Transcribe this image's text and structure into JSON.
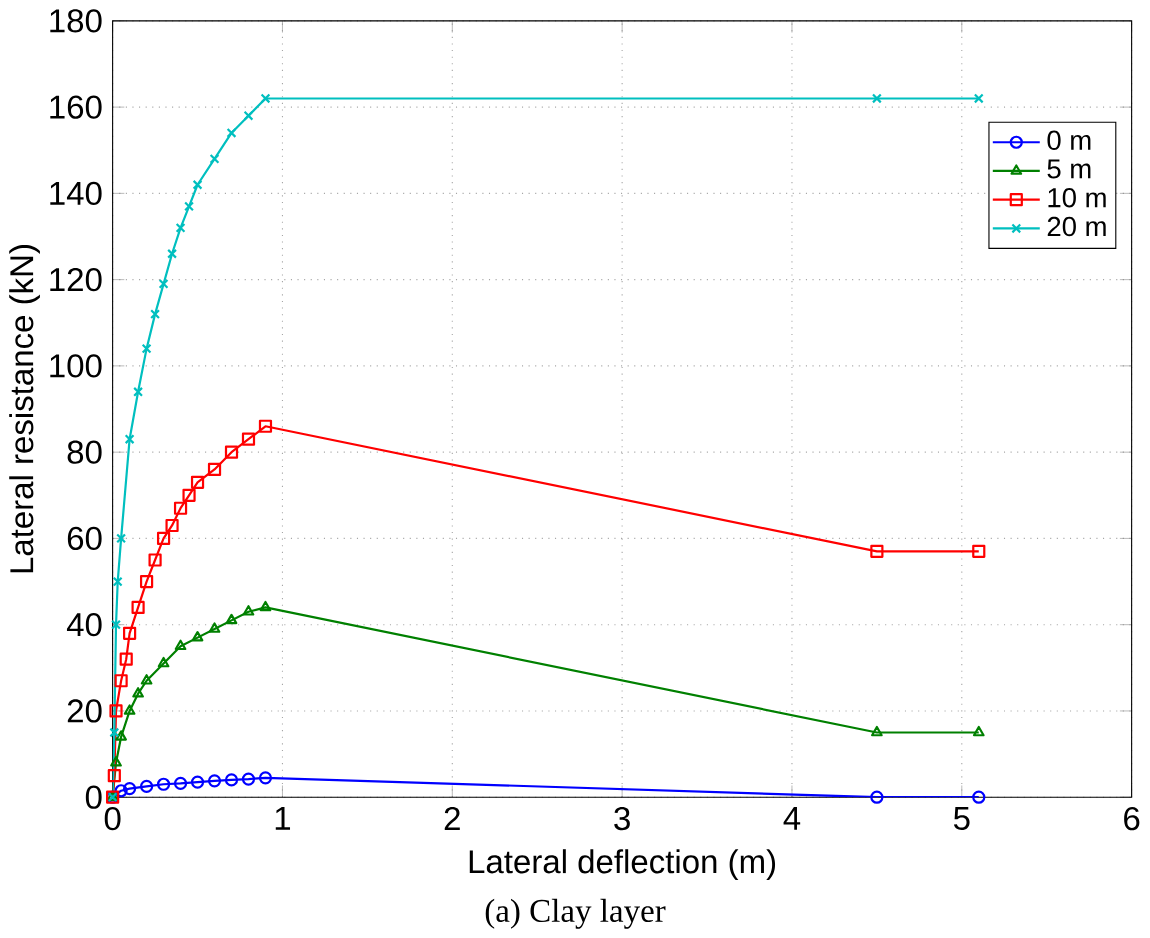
{
  "chart_data": {
    "type": "line",
    "xlabel": "Lateral deflection (m)",
    "ylabel": "Lateral resistance (kN)",
    "xlim": [
      0,
      6
    ],
    "ylim": [
      0,
      180
    ],
    "xticks": [
      0,
      1,
      2,
      3,
      4,
      5,
      6
    ],
    "yticks": [
      0,
      20,
      40,
      60,
      80,
      100,
      120,
      140,
      160,
      180
    ],
    "grid": true,
    "legend": "top right",
    "annotations": [
      "(a) Clay layer"
    ],
    "series": [
      {
        "name": "0 m",
        "color": "#0000ff",
        "marker": "circle",
        "x": [
          0,
          0.05,
          0.1,
          0.2,
          0.3,
          0.4,
          0.5,
          0.6,
          0.7,
          0.8,
          0.9,
          4.5,
          5.1
        ],
        "values": [
          0,
          1.5,
          2,
          2.5,
          3,
          3.2,
          3.5,
          3.8,
          4,
          4.2,
          4.5,
          0,
          0
        ]
      },
      {
        "name": "5 m",
        "color": "#008000",
        "marker": "triangle",
        "x": [
          0,
          0.02,
          0.05,
          0.1,
          0.15,
          0.2,
          0.3,
          0.4,
          0.5,
          0.6,
          0.7,
          0.8,
          0.9,
          4.5,
          5.1
        ],
        "values": [
          0,
          8,
          14,
          20,
          24,
          27,
          31,
          35,
          37,
          39,
          41,
          43,
          44,
          15,
          15
        ]
      },
      {
        "name": "10 m",
        "color": "#ff0000",
        "marker": "square",
        "x": [
          0,
          0.01,
          0.02,
          0.05,
          0.08,
          0.1,
          0.15,
          0.2,
          0.25,
          0.3,
          0.35,
          0.4,
          0.45,
          0.5,
          0.6,
          0.7,
          0.8,
          0.9,
          4.5,
          5.1
        ],
        "values": [
          0,
          5,
          20,
          27,
          32,
          38,
          44,
          50,
          55,
          60,
          63,
          67,
          70,
          73,
          76,
          80,
          83,
          86,
          57,
          57
        ]
      },
      {
        "name": "20 m",
        "color": "#00bfbf",
        "marker": "cross",
        "x": [
          0,
          0.01,
          0.02,
          0.03,
          0.05,
          0.1,
          0.15,
          0.2,
          0.25,
          0.3,
          0.35,
          0.4,
          0.45,
          0.5,
          0.6,
          0.7,
          0.8,
          0.9,
          4.5,
          5.1
        ],
        "values": [
          0,
          15,
          40,
          50,
          60,
          83,
          94,
          104,
          112,
          119,
          126,
          132,
          137,
          142,
          148,
          154,
          158,
          162,
          162,
          162
        ]
      }
    ]
  }
}
